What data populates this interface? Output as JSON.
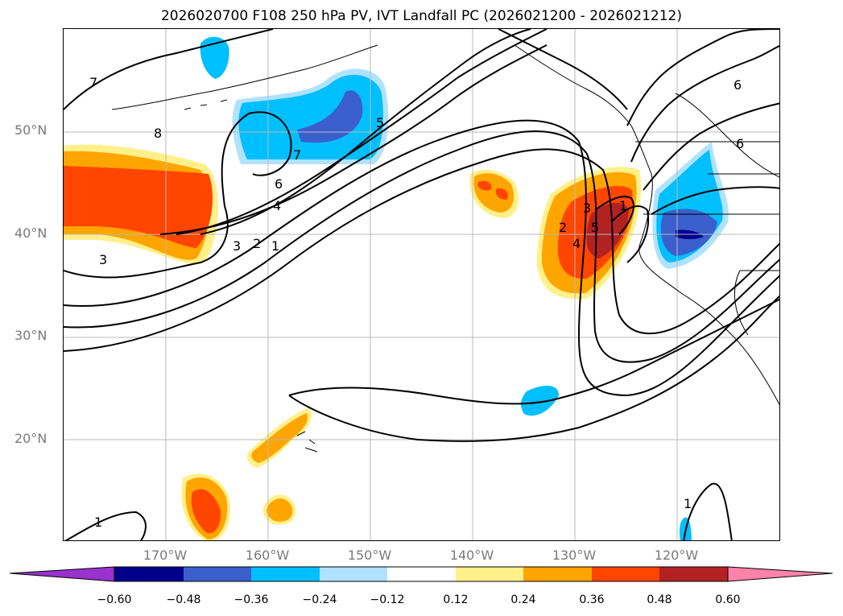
{
  "title": "2026020700 F108 250 hPa PV, IVT Landfall PC (2026021200 - 2026021212)",
  "map": {
    "lat_labels": [
      "50°N",
      "40°N",
      "30°N",
      "20°N"
    ],
    "lon_labels": [
      "170°W",
      "160°W",
      "150°W",
      "140°W",
      "130°W",
      "120°W"
    ],
    "contour_labels": [
      "7",
      "8",
      "7",
      "5",
      "6",
      "4",
      "3",
      "2",
      "1",
      "3",
      "1",
      "2",
      "3",
      "4",
      "5",
      "1",
      "6",
      "6",
      "1"
    ]
  },
  "colorbar": {
    "ticks": [
      "−0.60",
      "−0.48",
      "−0.36",
      "−0.24",
      "−0.12",
      "0.12",
      "0.24",
      "0.36",
      "0.48",
      "0.60"
    ],
    "colors": [
      "#9a32cd",
      "#00008b",
      "#3a5fcd",
      "#00bfff",
      "#b0e2ff",
      "#ffffff",
      "#fff08a",
      "#ffa500",
      "#ff4500",
      "#b22222",
      "#ff82ab"
    ]
  }
}
